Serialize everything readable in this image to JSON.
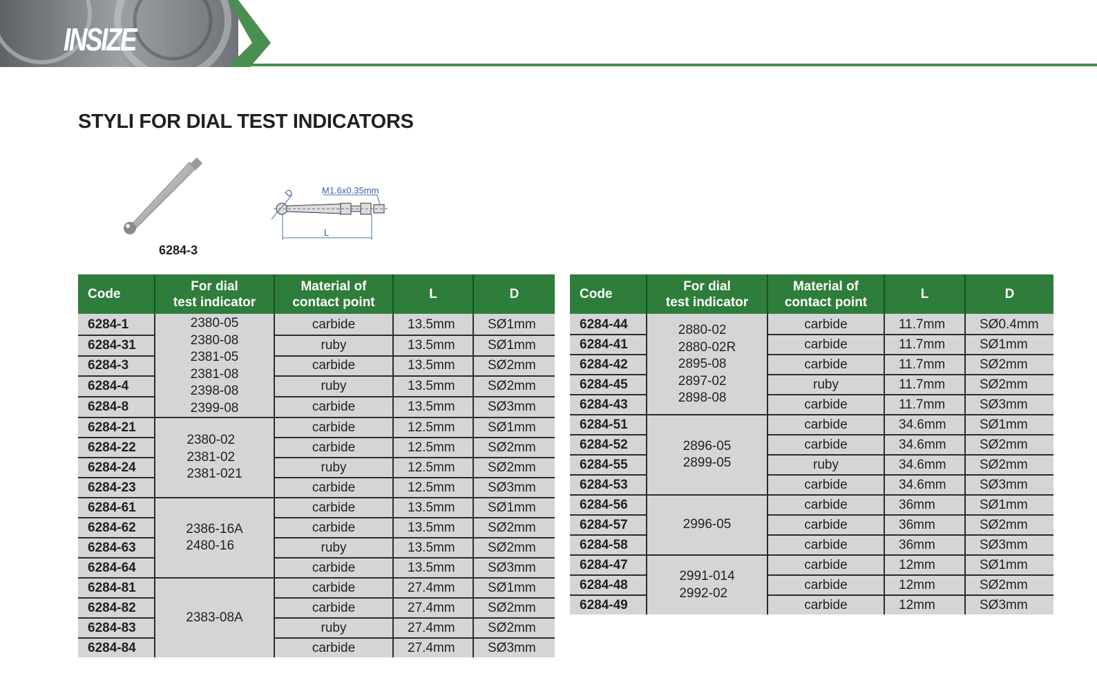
{
  "brand": {
    "logo_text": "INSIZE",
    "accent": "#2f7d3b"
  },
  "title": "STYLI FOR DIAL TEST INDICATORS",
  "figure": {
    "photo_label": "6284-3",
    "thread_label": "M1.6x0.35mm",
    "d_label": "D",
    "l_label": "L"
  },
  "headers": [
    "Code",
    "For dial\ntest indicator",
    "Material of\ncontact point",
    "L",
    "D"
  ],
  "left_table": {
    "groups": [
      {
        "indicators": [
          "2380-05",
          "2380-08",
          "2381-05",
          "2381-08",
          "2398-08",
          "2399-08"
        ],
        "rows": [
          [
            "6284-1",
            "carbide",
            "13.5mm",
            "SØ1mm"
          ],
          [
            "6284-31",
            "ruby",
            "13.5mm",
            "SØ1mm"
          ],
          [
            "6284-3",
            "carbide",
            "13.5mm",
            "SØ2mm"
          ],
          [
            "6284-4",
            "ruby",
            "13.5mm",
            "SØ2mm"
          ],
          [
            "6284-8",
            "carbide",
            "13.5mm",
            "SØ3mm"
          ]
        ]
      },
      {
        "indicators": [
          "2380-02",
          "2381-02",
          "2381-021"
        ],
        "rows": [
          [
            "6284-21",
            "carbide",
            "12.5mm",
            "SØ1mm"
          ],
          [
            "6284-22",
            "carbide",
            "12.5mm",
            "SØ2mm"
          ],
          [
            "6284-24",
            "ruby",
            "12.5mm",
            "SØ2mm"
          ],
          [
            "6284-23",
            "carbide",
            "12.5mm",
            "SØ3mm"
          ]
        ]
      },
      {
        "indicators": [
          "2386-16A",
          "2480-16"
        ],
        "rows": [
          [
            "6284-61",
            "carbide",
            "13.5mm",
            "SØ1mm"
          ],
          [
            "6284-62",
            "carbide",
            "13.5mm",
            "SØ2mm"
          ],
          [
            "6284-63",
            "ruby",
            "13.5mm",
            "SØ2mm"
          ],
          [
            "6284-64",
            "carbide",
            "13.5mm",
            "SØ3mm"
          ]
        ]
      },
      {
        "indicators": [
          "2383-08A"
        ],
        "rows": [
          [
            "6284-81",
            "carbide",
            "27.4mm",
            "SØ1mm"
          ],
          [
            "6284-82",
            "carbide",
            "27.4mm",
            "SØ2mm"
          ],
          [
            "6284-83",
            "ruby",
            "27.4mm",
            "SØ2mm"
          ],
          [
            "6284-84",
            "carbide",
            "27.4mm",
            "SØ3mm"
          ]
        ]
      }
    ]
  },
  "right_table": {
    "groups": [
      {
        "indicators": [
          "2880-02",
          "2880-02R",
          "2895-08",
          "2897-02",
          "2898-08"
        ],
        "rows": [
          [
            "6284-44",
            "carbide",
            "11.7mm",
            "SØ0.4mm"
          ],
          [
            "6284-41",
            "carbide",
            "11.7mm",
            "SØ1mm"
          ],
          [
            "6284-42",
            "carbide",
            "11.7mm",
            "SØ2mm"
          ],
          [
            "6284-45",
            "ruby",
            "11.7mm",
            "SØ2mm"
          ],
          [
            "6284-43",
            "carbide",
            "11.7mm",
            "SØ3mm"
          ]
        ]
      },
      {
        "indicators": [
          "2896-05",
          "2899-05"
        ],
        "rows": [
          [
            "6284-51",
            "carbide",
            "34.6mm",
            "SØ1mm"
          ],
          [
            "6284-52",
            "carbide",
            "34.6mm",
            "SØ2mm"
          ],
          [
            "6284-55",
            "ruby",
            "34.6mm",
            "SØ2mm"
          ],
          [
            "6284-53",
            "carbide",
            "34.6mm",
            "SØ3mm"
          ]
        ]
      },
      {
        "indicators": [
          "2996-05"
        ],
        "rows": [
          [
            "6284-56",
            "carbide",
            "36mm",
            "SØ1mm"
          ],
          [
            "6284-57",
            "carbide",
            "36mm",
            "SØ2mm"
          ],
          [
            "6284-58",
            "carbide",
            "36mm",
            "SØ3mm"
          ]
        ]
      },
      {
        "indicators": [
          "2991-014",
          "2992-02"
        ],
        "rows": [
          [
            "6284-47",
            "carbide",
            "12mm",
            "SØ1mm"
          ],
          [
            "6284-48",
            "carbide",
            "12mm",
            "SØ2mm"
          ],
          [
            "6284-49",
            "carbide",
            "12mm",
            "SØ3mm"
          ]
        ]
      }
    ]
  }
}
